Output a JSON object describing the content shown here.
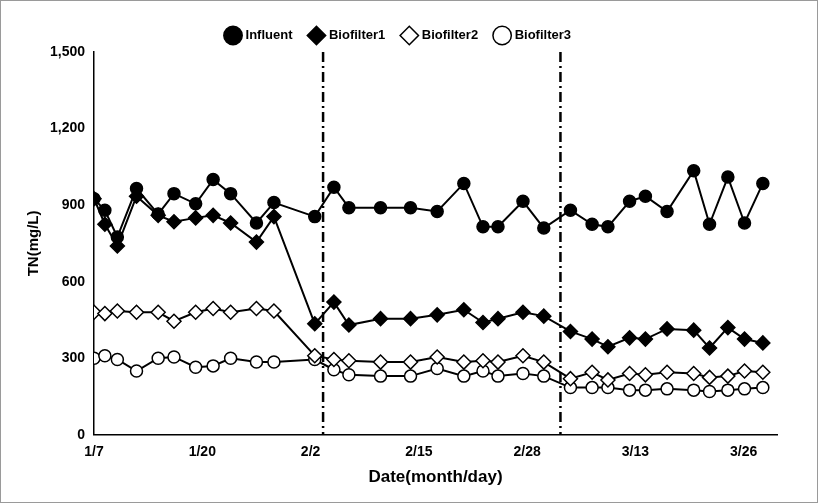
{
  "chart_data": {
    "type": "line",
    "x_label": "Date(month/day)",
    "y_label": "TN(mg/L)",
    "x": [
      7,
      8.3,
      9.8,
      12.1,
      14.7,
      16.6,
      19.2,
      21.3,
      23.4,
      26.5,
      28.6,
      33.5,
      35.8,
      37.6,
      41.4,
      45,
      48.2,
      51.4,
      53.7,
      55.5,
      58.5,
      61,
      64.2,
      66.8,
      68.7,
      71.3,
      73.2,
      75.8,
      79,
      80.9,
      83.1,
      85.1,
      87.3
    ],
    "series": [
      {
        "name": "Influent",
        "color": "#000000",
        "marker": "filled_circle",
        "values": [
          925,
          880,
          775,
          965,
          865,
          945,
          905,
          1000,
          945,
          830,
          910,
          855,
          970,
          890,
          890,
          890,
          875,
          985,
          815,
          815,
          915,
          810,
          880,
          825,
          815,
          915,
          935,
          875,
          1035,
          825,
          1010,
          830,
          985
        ]
      },
      {
        "name": "Biofilter1",
        "color": "#000000",
        "marker": "filled_diamond",
        "values": [
          925,
          825,
          740,
          935,
          860,
          835,
          850,
          860,
          830,
          755,
          855,
          435,
          520,
          430,
          455,
          455,
          470,
          490,
          440,
          455,
          480,
          465,
          405,
          375,
          345,
          380,
          375,
          415,
          410,
          340,
          420,
          375,
          360
        ]
      },
      {
        "name": "Biofilter2",
        "color": "#000000",
        "marker": "open_diamond",
        "values": [
          480,
          475,
          485,
          480,
          480,
          445,
          480,
          495,
          480,
          495,
          485,
          310,
          295,
          290,
          285,
          285,
          305,
          285,
          290,
          285,
          310,
          285,
          220,
          245,
          215,
          240,
          235,
          245,
          240,
          225,
          230,
          250,
          245
        ]
      },
      {
        "name": "Biofilter3",
        "color": "#000000",
        "marker": "open_circle",
        "values": [
          300,
          310,
          295,
          250,
          300,
          305,
          265,
          270,
          300,
          285,
          285,
          295,
          255,
          235,
          230,
          230,
          260,
          230,
          250,
          230,
          240,
          230,
          185,
          185,
          185,
          175,
          175,
          180,
          175,
          170,
          175,
          180,
          185
        ]
      }
    ],
    "xlim": [
      7,
      89
    ],
    "xticks": [
      {
        "value": 7,
        "label": "1/7"
      },
      {
        "value": 20,
        "label": "1/20"
      },
      {
        "value": 33,
        "label": "2/2"
      },
      {
        "value": 46,
        "label": "2/15"
      },
      {
        "value": 59,
        "label": "2/28"
      },
      {
        "value": 72,
        "label": "3/13"
      },
      {
        "value": 85,
        "label": "3/26"
      }
    ],
    "ylim": [
      0,
      1500
    ],
    "yticks": [
      0,
      300,
      600,
      900,
      {
        "value": 1200,
        "label": "1,200"
      },
      {
        "value": 1500,
        "label": "1,500"
      }
    ],
    "vertical_lines": [
      34.5,
      63
    ],
    "vertical_line_style": "dashdot",
    "grid": false,
    "legend": "top"
  }
}
